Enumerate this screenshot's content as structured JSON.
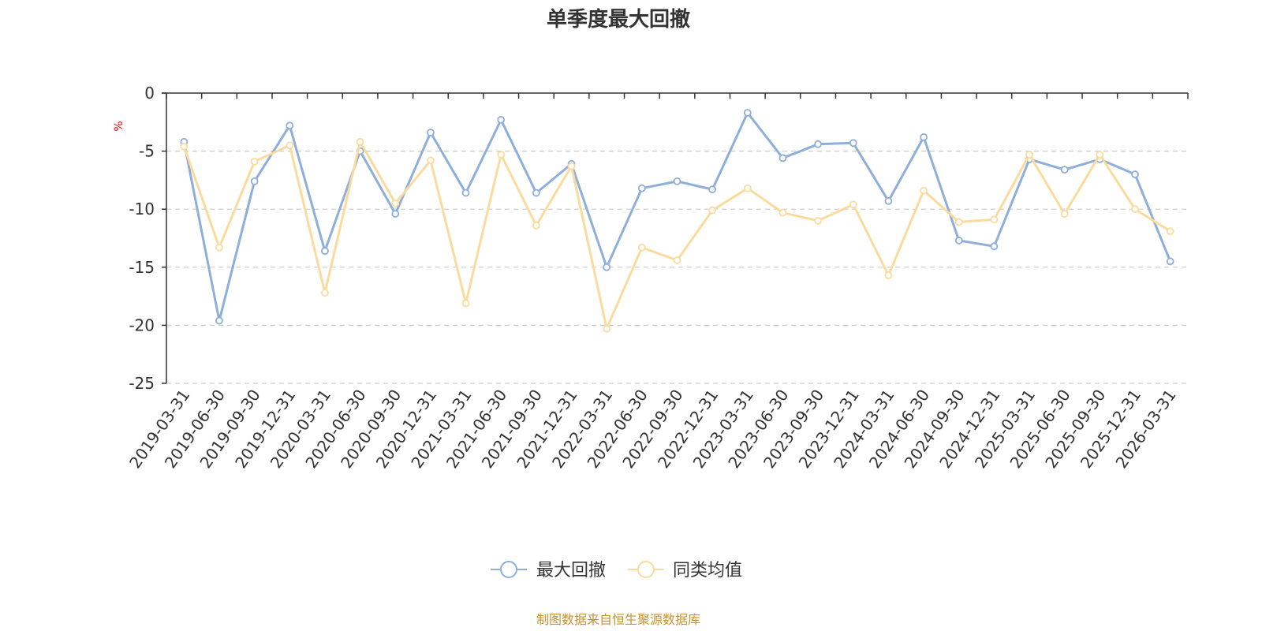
{
  "chart_data": {
    "type": "line",
    "title": "单季度最大回撤",
    "ylabel": "%",
    "ylim": [
      -25,
      0
    ],
    "yticks": [
      0,
      -5,
      -10,
      -15,
      -20,
      -25
    ],
    "grid": true,
    "legend_position": "bottom-center",
    "categories": [
      "2019-03-31",
      "2019-06-30",
      "2019-09-30",
      "2019-12-31",
      "2020-03-31",
      "2020-06-30",
      "2020-09-30",
      "2020-12-31",
      "2021-03-31",
      "2021-06-30",
      "2021-09-30",
      "2021-12-31",
      "2022-03-31",
      "2022-06-30",
      "2022-09-30",
      "2022-12-31",
      "2023-03-31",
      "2023-06-30",
      "2023-09-30",
      "2023-12-31",
      "2024-03-31",
      "2024-06-30",
      "2024-09-30",
      "2024-12-31",
      "2025-03-31",
      "2025-06-30",
      "2025-09-30",
      "2025-12-31",
      "2026-03-31"
    ],
    "series": [
      {
        "name": "最大回撤",
        "color": "#8eaedc",
        "values": [
          -4.2,
          -19.6,
          -7.6,
          -2.8,
          -13.6,
          -5.0,
          -10.4,
          -3.4,
          -8.6,
          -2.3,
          -8.6,
          -6.1,
          -15.0,
          -8.2,
          -7.6,
          -8.3,
          -1.7,
          -5.6,
          -4.4,
          -4.3,
          -9.3,
          -3.8,
          -12.7,
          -13.2,
          -5.7,
          -6.6,
          -5.7,
          -7.0,
          -14.5
        ]
      },
      {
        "name": "同类均值",
        "color": "#fbdb9d",
        "values": [
          -4.6,
          -13.3,
          -5.9,
          -4.5,
          -17.2,
          -4.2,
          -9.5,
          -5.8,
          -18.1,
          -5.3,
          -11.4,
          -6.3,
          -20.3,
          -13.3,
          -14.4,
          -10.1,
          -8.2,
          -10.3,
          -11.0,
          -9.6,
          -15.7,
          -8.4,
          -11.1,
          -10.9,
          -5.3,
          -10.4,
          -5.3,
          -10.0,
          -11.9
        ]
      }
    ]
  },
  "footer": {
    "source_text": "制图数据来自恒生聚源数据库",
    "source_color": "#c8922a"
  },
  "style": {
    "axis_color": "#333333",
    "grid_color": "#cccccc",
    "ylabel_color": "#ff0000"
  }
}
